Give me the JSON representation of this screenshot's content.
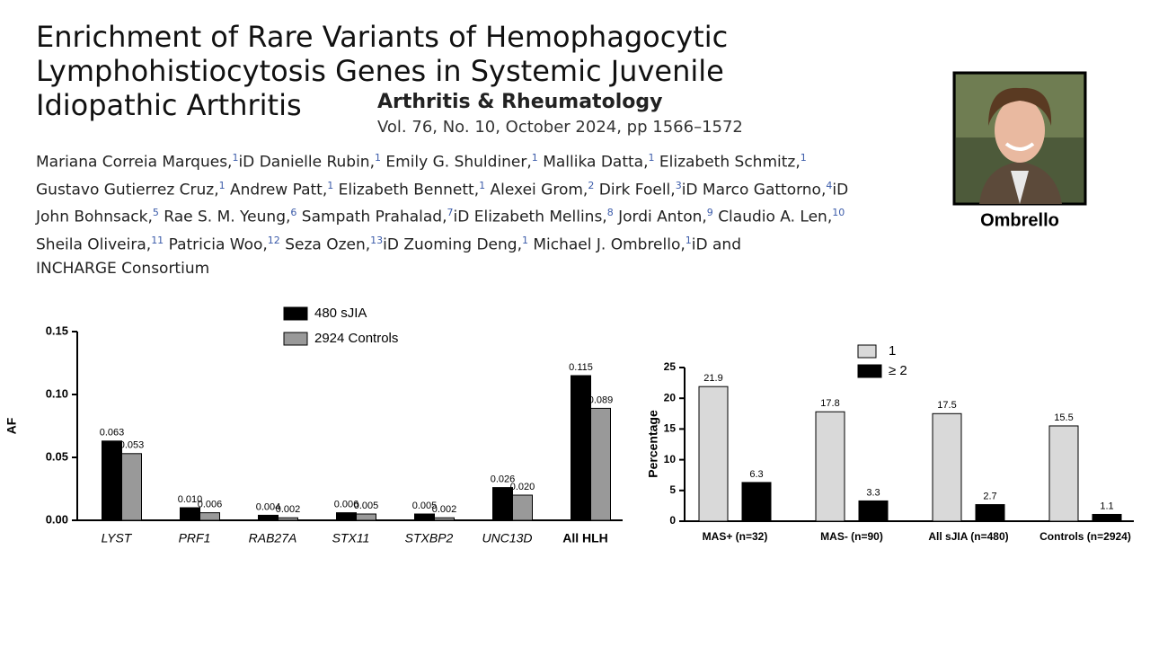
{
  "header": {
    "title_lines": [
      "Enrichment of Rare Variants of Hemophagocytic",
      "Lymphohistiocytosis Genes in Systemic Juvenile",
      "Idiopathic Arthritis"
    ],
    "journal": "Arthritis & Rheumatology",
    "citation": "Vol. 76, No. 10, October 2024, pp 1566–1572"
  },
  "authors": [
    [
      {
        "name": "Mariana Correia Marques,",
        "aff": 1,
        "orcid": true
      },
      {
        "name": "Danielle Rubin,",
        "aff": 1
      },
      {
        "name": "Emily G. Shuldiner,",
        "aff": 1
      },
      {
        "name": "Mallika Datta,",
        "aff": 1
      },
      {
        "name": "Elizabeth Schmitz,",
        "aff": 1
      }
    ],
    [
      {
        "name": "Gustavo Gutierrez Cruz,",
        "aff": 1
      },
      {
        "name": "Andrew Patt,",
        "aff": 1
      },
      {
        "name": "Elizabeth Bennett,",
        "aff": 1
      },
      {
        "name": "Alexei Grom,",
        "aff": 2
      },
      {
        "name": "Dirk Foell,",
        "aff": 3,
        "orcid": true
      },
      {
        "name": "Marco Gattorno,",
        "aff": 4,
        "orcid": true
      }
    ],
    [
      {
        "name": "John Bohnsack,",
        "aff": 5
      },
      {
        "name": "Rae S. M. Yeung,",
        "aff": 6
      },
      {
        "name": "Sampath Prahalad,",
        "aff": 7,
        "orcid": true
      },
      {
        "name": "Elizabeth Mellins,",
        "aff": 8
      },
      {
        "name": "Jordi Anton,",
        "aff": 9
      },
      {
        "name": "Claudio A. Len,",
        "aff": 10
      }
    ],
    [
      {
        "name": "Sheila Oliveira,",
        "aff": 11
      },
      {
        "name": "Patricia Woo,",
        "aff": 12
      },
      {
        "name": "Seza Ozen,",
        "aff": 13,
        "orcid": true
      },
      {
        "name": "Zuoming Deng,",
        "aff": 1
      },
      {
        "name": "Michael J. Ombrello,",
        "aff": 1,
        "orcid": true
      },
      "and"
    ],
    [
      "INCHARGE Consortium"
    ]
  ],
  "photo_caption": "Ombrello",
  "chart_data": [
    {
      "type": "bar",
      "y_label": "AF",
      "categories": [
        "LYST",
        "PRF1",
        "RAB27A",
        "STX11",
        "STXBP2",
        "UNC13D",
        "All HLH"
      ],
      "series": [
        {
          "name": "480 sJIA",
          "color": "#000000",
          "values": [
            0.063,
            0.01,
            0.004,
            0.006,
            0.005,
            0.026,
            0.115
          ],
          "value_labels": [
            "0.063",
            "0.010",
            "0.004",
            "0.006",
            "0.005",
            "0.026",
            "0.115"
          ]
        },
        {
          "name": "2924 Controls",
          "color": "#999999",
          "values": [
            0.053,
            0.006,
            0.002,
            0.005,
            0.002,
            0.02,
            0.089
          ],
          "value_labels": [
            "0.053",
            "0.006",
            "0.002",
            "0.005",
            "0.002",
            "0.020",
            "0.089"
          ]
        }
      ],
      "ylim": [
        0,
        0.15
      ],
      "yticks": [
        {
          "value": 0,
          "label": "0.00"
        },
        {
          "value": 0.05,
          "label": "0.05"
        },
        {
          "value": 0.1,
          "label": "0.10"
        },
        {
          "value": 0.15,
          "label": "0.15"
        }
      ]
    },
    {
      "type": "bar",
      "y_label": "Percentage",
      "categories": [
        "MAS+ (n=32)",
        "MAS- (n=90)",
        "All sJIA (n=480)",
        "Controls (n=2924)"
      ],
      "series": [
        {
          "name": "1",
          "color": "#d9d9d9",
          "values": [
            21.9,
            17.8,
            17.5,
            15.5
          ]
        },
        {
          "name": "≥ 2",
          "color": "#000000",
          "values": [
            6.3,
            3.3,
            2.7,
            1.1
          ]
        }
      ],
      "ylim": [
        0,
        25
      ],
      "yticks": [
        0,
        5,
        10,
        15,
        20,
        25
      ]
    }
  ]
}
